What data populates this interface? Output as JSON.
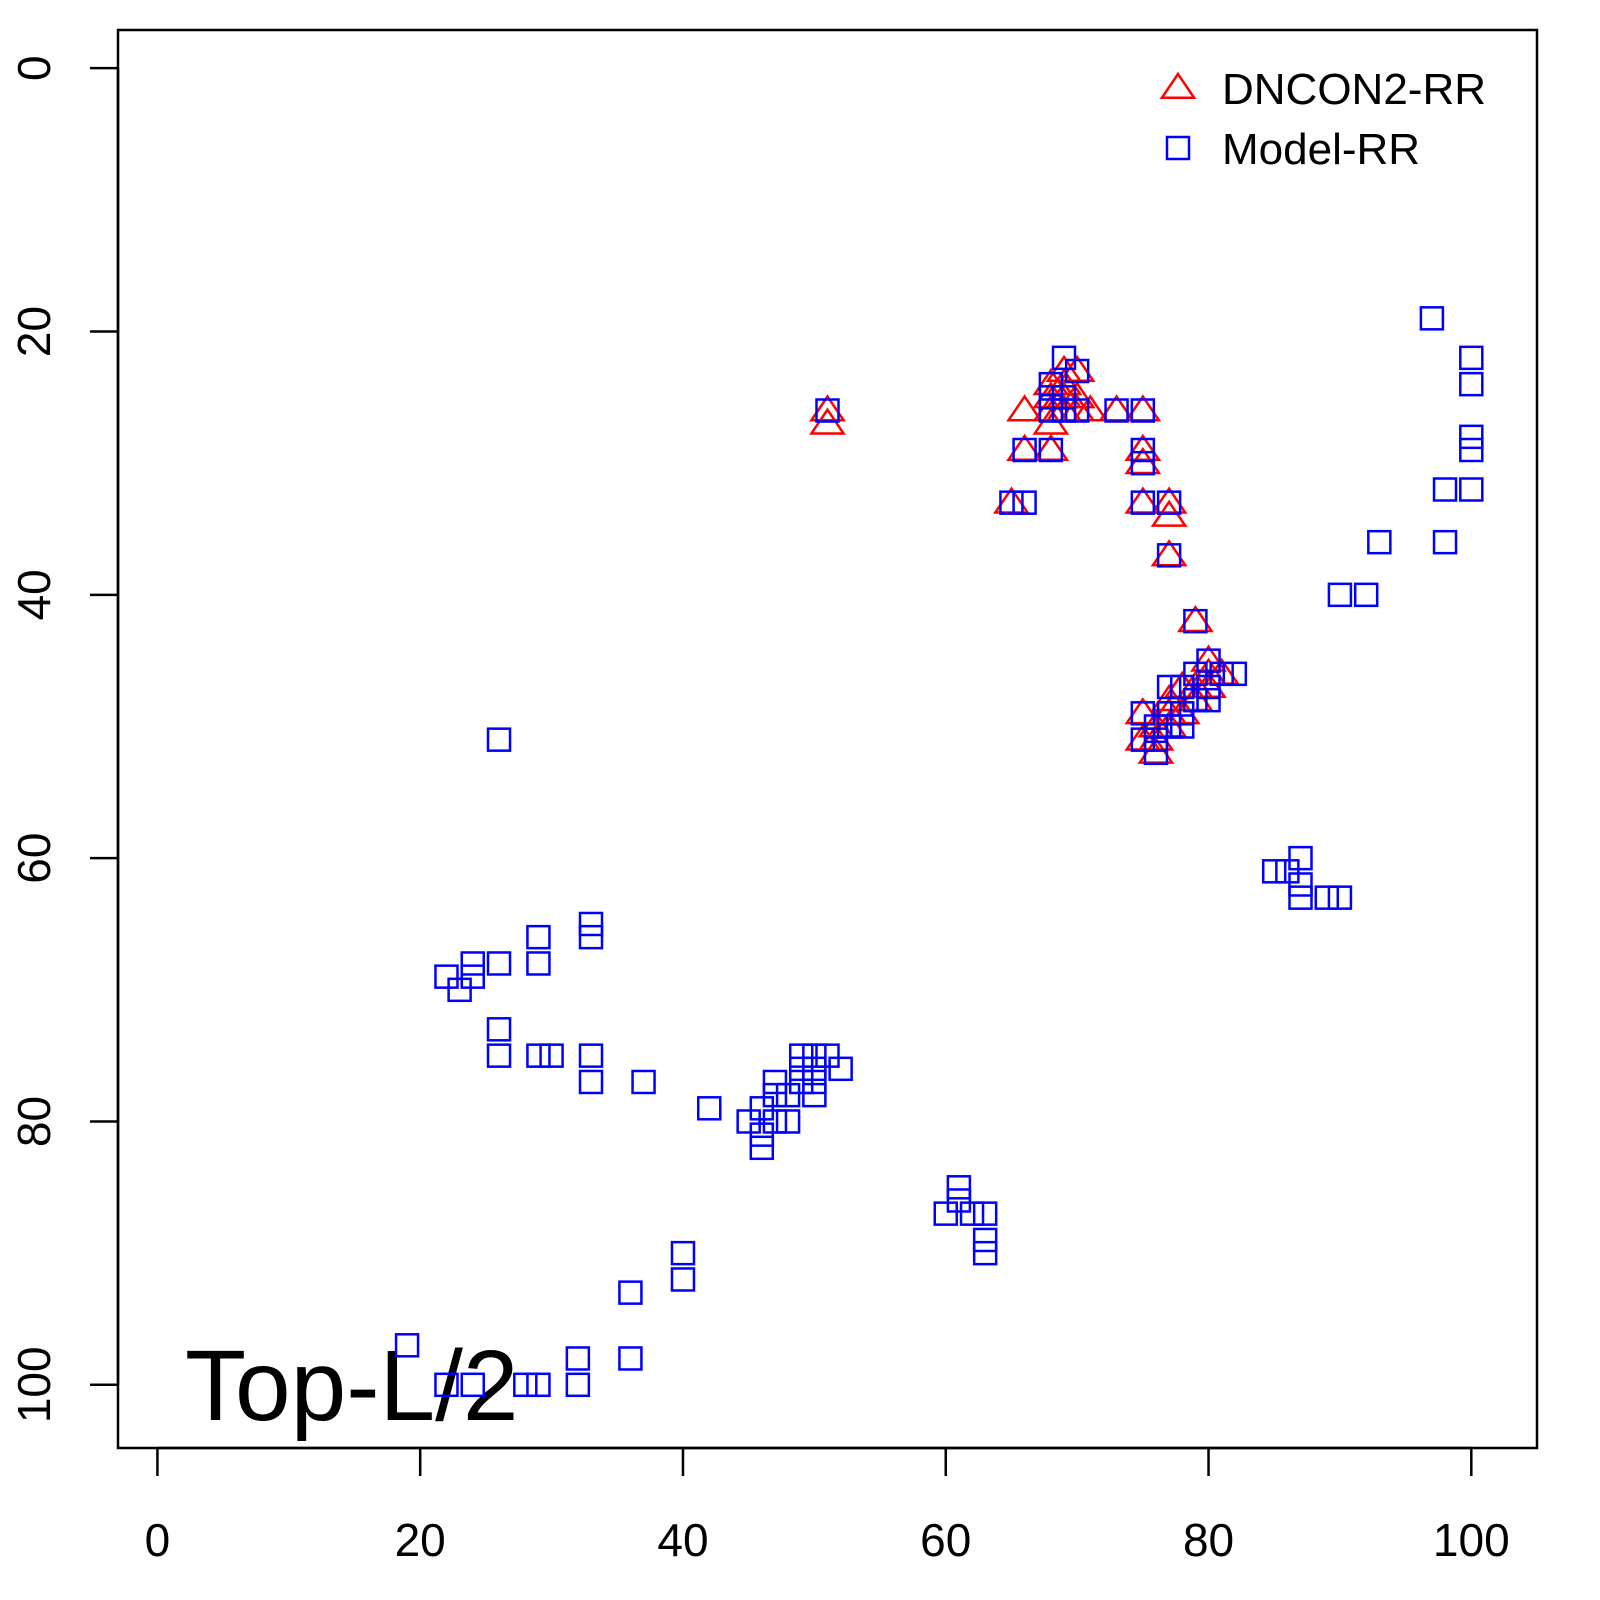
{
  "chart_data": {
    "type": "scatter",
    "annotation": "Top-L/2",
    "xlim": [
      -3,
      105
    ],
    "ylim": [
      104.8,
      -2.9
    ],
    "xticks": [
      0,
      20,
      40,
      60,
      80,
      100
    ],
    "yticks": [
      0,
      20,
      40,
      60,
      80,
      100
    ],
    "legend": "topright",
    "series": [
      {
        "name": "DNCON2-RR",
        "color": "#ff0000",
        "marker": "triangle",
        "x": [
          51,
          51,
          65,
          66,
          66,
          68,
          68,
          68,
          68,
          68,
          69,
          69,
          69,
          70,
          70,
          70,
          71,
          69,
          73,
          75,
          75,
          75,
          75,
          77,
          77,
          77,
          79,
          80,
          81,
          80,
          79,
          78,
          80,
          77,
          79,
          78,
          77,
          75,
          76,
          77,
          75,
          76,
          76
        ],
        "y": [
          26,
          27,
          33,
          26,
          29,
          29,
          26,
          27,
          25,
          24,
          23,
          24,
          25,
          23,
          25,
          26,
          26,
          26,
          26,
          26,
          29,
          30,
          33,
          33,
          34,
          37,
          42,
          45,
          46,
          46,
          47,
          47,
          47,
          48,
          48,
          49,
          49,
          49,
          50,
          50,
          51,
          51,
          52
        ]
      },
      {
        "name": "Model-RR",
        "color": "#0000ff",
        "marker": "square",
        "x": [
          97,
          100,
          100,
          100,
          100,
          100,
          98,
          98,
          93,
          90,
          92,
          69,
          70,
          68,
          69,
          68,
          68,
          69,
          70,
          51,
          73,
          75,
          66,
          68,
          75,
          75,
          65,
          66,
          75,
          77,
          77,
          79,
          80,
          81,
          82,
          79,
          78,
          80,
          77,
          79,
          80,
          78,
          77,
          75,
          76,
          78,
          77,
          75,
          76,
          76,
          26,
          87,
          85,
          86,
          87,
          87,
          89,
          90,
          33,
          33,
          29,
          29,
          24,
          26,
          22,
          24,
          23,
          26,
          26,
          29,
          30,
          33,
          33,
          37,
          42,
          45,
          46,
          46,
          46,
          47,
          47,
          47,
          48,
          48,
          49,
          49,
          50,
          51,
          50,
          52,
          50,
          50,
          49,
          61,
          61,
          60,
          62,
          63,
          63,
          63,
          40,
          40,
          36,
          36,
          32,
          32,
          19,
          22,
          24,
          28,
          29
        ],
        "y": [
          19,
          22,
          24,
          28,
          29,
          32,
          32,
          36,
          36,
          40,
          40,
          22,
          23,
          24,
          25,
          25,
          26,
          26,
          26,
          26,
          26,
          26,
          29,
          29,
          29,
          30,
          33,
          33,
          33,
          33,
          37,
          42,
          45,
          46,
          46,
          46,
          47,
          47,
          47,
          48,
          48,
          49,
          49,
          49,
          50,
          50,
          50,
          51,
          51,
          52,
          51,
          60,
          61,
          61,
          62,
          63,
          63,
          63,
          65,
          66,
          66,
          68,
          68,
          68,
          69,
          69,
          70,
          73,
          75,
          75,
          75,
          75,
          77,
          77,
          79,
          80,
          79,
          81,
          82,
          77,
          78,
          80,
          78,
          80,
          76,
          75,
          75,
          75,
          76,
          76,
          77,
          78,
          77,
          85,
          86,
          87,
          87,
          87,
          89,
          90,
          90,
          92,
          93,
          98,
          98,
          100,
          97,
          100,
          100,
          100,
          100
        ]
      }
    ]
  }
}
